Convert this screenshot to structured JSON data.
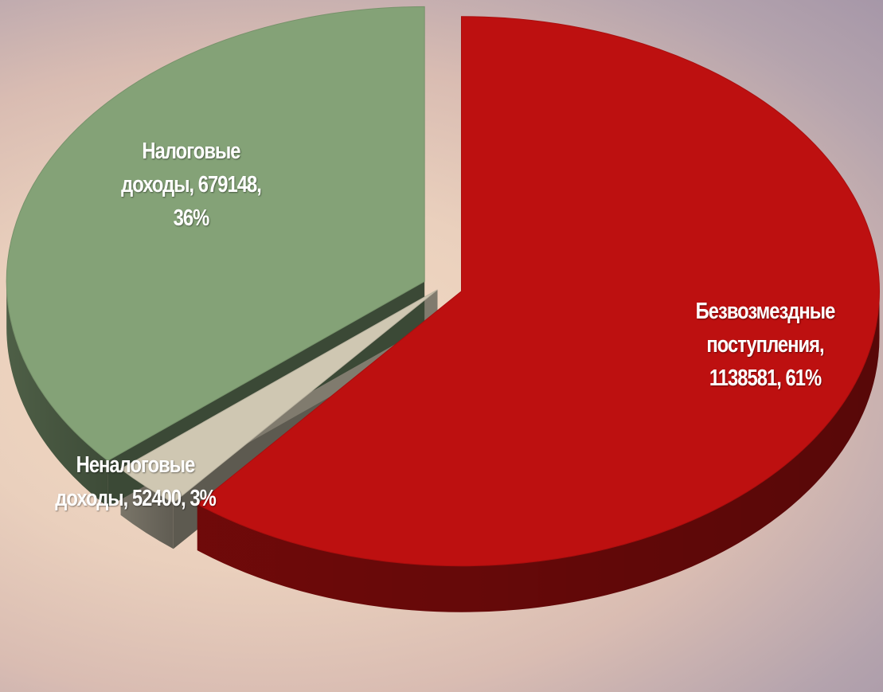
{
  "chart_data": {
    "type": "pie",
    "style": "3d-exploded",
    "slices": [
      {
        "name": "Безвозмездные поступления",
        "value": 1138581,
        "percent": 61,
        "color": "#bd1010",
        "label_lines": [
          "Безвозмездные",
          "поступления,",
          "1138581, 61%"
        ]
      },
      {
        "name": "Неналоговые доходы",
        "value": 52400,
        "percent": 3,
        "color": "#cfc7b2",
        "label_lines": [
          "Неналоговые",
          "доходы, 52400, 3%"
        ]
      },
      {
        "name": "Налоговые доходы",
        "value": 679148,
        "percent": 36,
        "color": "#84a277",
        "label_lines": [
          "Налоговые",
          "доходы, 679148,",
          "36%"
        ]
      }
    ]
  }
}
